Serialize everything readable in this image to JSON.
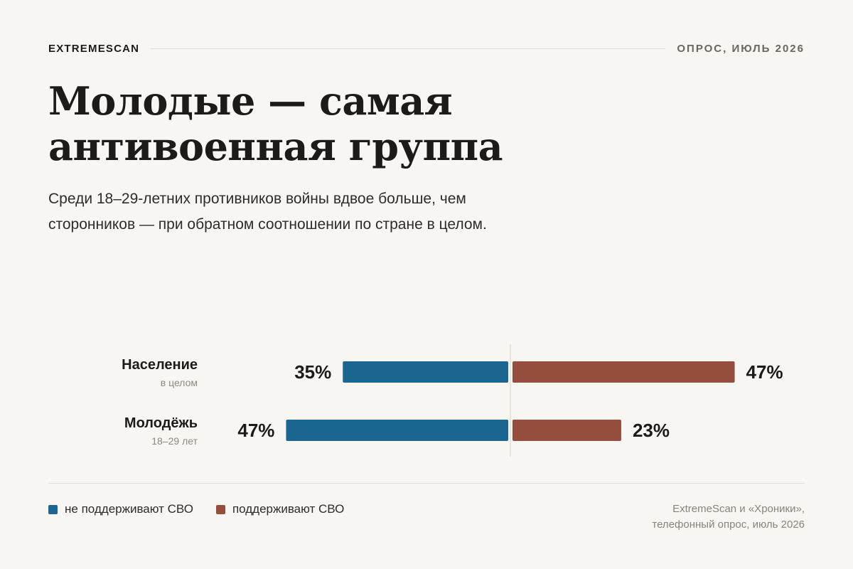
{
  "header": {
    "brand": "EXTREMESCAN",
    "meta": "ОПРОС, ИЮЛЬ 2026"
  },
  "title": "Молодые — самая антивоенная группа",
  "subtitle": "Среди 18–29-летних противников войны вдвое больше, чем сторонников — при обратном соотношении по стране в целом.",
  "colors": {
    "oppose": "#1b6690",
    "support": "#954d3d",
    "background": "#f8f6f2"
  },
  "chart_data": {
    "type": "bar",
    "orientation": "horizontal-diverging",
    "categories": [
      "Население",
      "Молодёжь"
    ],
    "category_sublabels": [
      "в целом",
      "18–29 лет"
    ],
    "series": [
      {
        "name": "не поддерживают СВО",
        "values": [
          35,
          47
        ],
        "labels": [
          "35%",
          "47%"
        ],
        "direction": "left"
      },
      {
        "name": "поддерживают СВО",
        "values": [
          47,
          23
        ],
        "labels": [
          "47%",
          "23%"
        ],
        "direction": "right"
      }
    ],
    "unit": "%",
    "xlim": [
      0,
      50
    ],
    "grid": false,
    "legend_position": "bottom-left"
  },
  "source": {
    "line1": "ExtremeScan и «Хроники»,",
    "line2": "телефонный опрос, июль 2026"
  }
}
